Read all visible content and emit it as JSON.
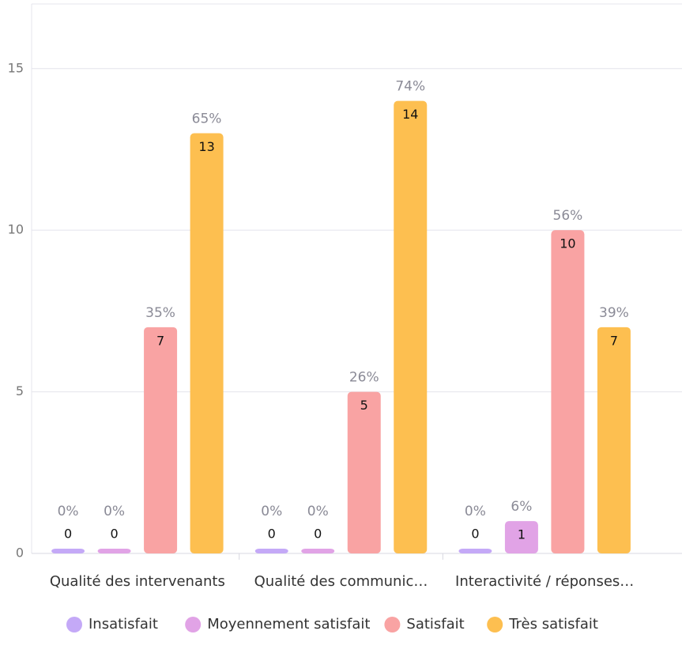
{
  "chart_data": {
    "type": "bar",
    "categories": [
      "Qualité des intervenants",
      "Qualité des communic…",
      "Interactivité / réponses…"
    ],
    "series": [
      {
        "name": "Insatisfait",
        "color": "#c4a9f7",
        "values": [
          0,
          0,
          0
        ],
        "percent_labels": [
          "0%",
          "0%",
          "0%"
        ]
      },
      {
        "name": "Moyennement satisfait",
        "color": "#e1a3e6",
        "values": [
          0,
          0,
          1
        ],
        "percent_labels": [
          "0%",
          "0%",
          "6%"
        ]
      },
      {
        "name": "Satisfait",
        "color": "#f9a3a3",
        "values": [
          7,
          5,
          10
        ],
        "percent_labels": [
          "35%",
          "26%",
          "56%"
        ]
      },
      {
        "name": "Très satisfait",
        "color": "#fdbf50",
        "values": [
          13,
          14,
          7
        ],
        "percent_labels": [
          "65%",
          "74%",
          "39%"
        ]
      }
    ],
    "ylim": [
      0,
      17
    ],
    "yticks": [
      0,
      5,
      10,
      15
    ],
    "grid": true,
    "legend": "bottom"
  }
}
